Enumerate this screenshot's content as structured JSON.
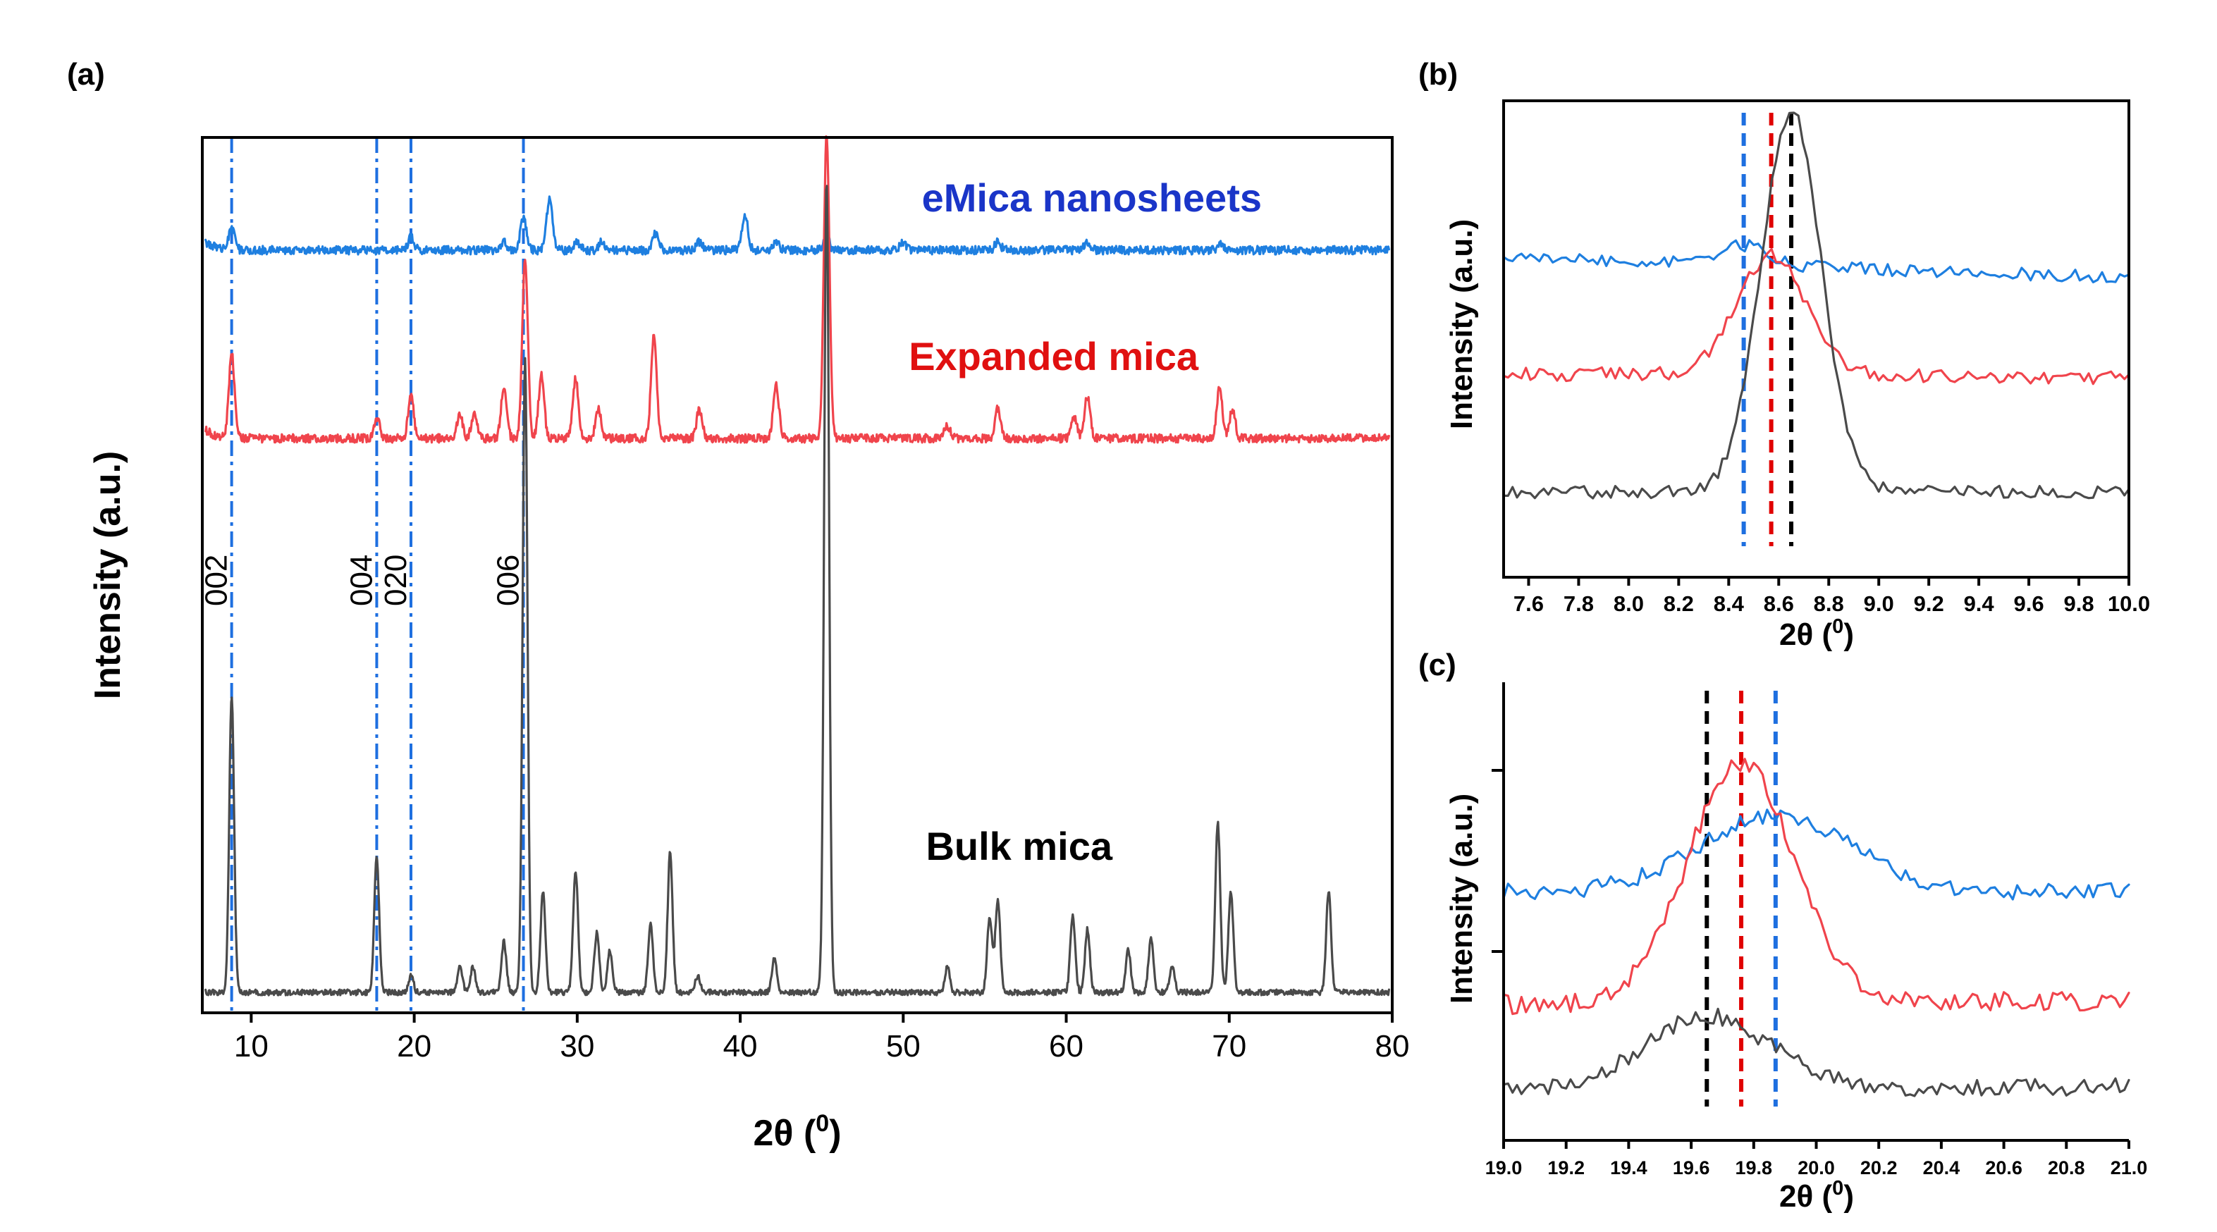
{
  "figure": {
    "panels": [
      "(a)",
      "(b)",
      "(c)"
    ],
    "colors": {
      "bulk": "#4a4a4a",
      "expanded": "#f0444c",
      "emica": "#1e7fe0",
      "ref": "#1e6fe0"
    }
  },
  "chart_data": [
    {
      "panel": "(a)",
      "type": "line",
      "title": "",
      "xlabel": "2θ (0)",
      "ylabel": "Intensity (a.u.)",
      "xlim": [
        7,
        80
      ],
      "xticks": [
        10,
        20,
        30,
        40,
        50,
        60,
        70,
        80
      ],
      "grid": false,
      "series": [
        {
          "name": "eMica nanosheets",
          "color": "#1e7fe0",
          "peaks": [
            [
              8.8,
              0.05
            ],
            [
              19.8,
              0.03
            ],
            [
              25.5,
              0.02
            ],
            [
              26.7,
              0.08
            ],
            [
              28.3,
              0.12
            ],
            [
              30.0,
              0.02
            ],
            [
              31.5,
              0.02
            ],
            [
              34.8,
              0.04
            ],
            [
              37.5,
              0.02
            ],
            [
              40.3,
              0.08
            ],
            [
              42.2,
              0.02
            ],
            [
              45.3,
              0.03
            ],
            [
              50.0,
              0.02
            ],
            [
              55.8,
              0.02
            ],
            [
              61.3,
              0.02
            ],
            [
              69.5,
              0.015
            ]
          ]
        },
        {
          "name": "Expanded mica",
          "color": "#f0444c",
          "peaks": [
            [
              8.8,
              0.2
            ],
            [
              17.7,
              0.05
            ],
            [
              19.8,
              0.1
            ],
            [
              22.8,
              0.06
            ],
            [
              23.7,
              0.06
            ],
            [
              25.5,
              0.12
            ],
            [
              26.8,
              0.42
            ],
            [
              27.8,
              0.15
            ],
            [
              29.9,
              0.14
            ],
            [
              31.3,
              0.07
            ],
            [
              34.7,
              0.24
            ],
            [
              37.5,
              0.07
            ],
            [
              42.2,
              0.13
            ],
            [
              45.3,
              0.72
            ],
            [
              52.7,
              0.03
            ],
            [
              55.8,
              0.07
            ],
            [
              60.5,
              0.05
            ],
            [
              61.3,
              0.1
            ],
            [
              69.4,
              0.12
            ],
            [
              70.2,
              0.07
            ]
          ]
        },
        {
          "name": "Bulk mica",
          "color": "#4a4a4a",
          "peaks": [
            [
              8.8,
              0.7
            ],
            [
              17.7,
              0.32
            ],
            [
              19.8,
              0.04
            ],
            [
              22.8,
              0.06
            ],
            [
              23.6,
              0.06
            ],
            [
              25.5,
              0.12
            ],
            [
              26.8,
              1.5
            ],
            [
              27.9,
              0.24
            ],
            [
              29.9,
              0.29
            ],
            [
              31.2,
              0.14
            ],
            [
              32.0,
              0.1
            ],
            [
              34.5,
              0.16
            ],
            [
              35.7,
              0.33
            ],
            [
              37.4,
              0.04
            ],
            [
              42.1,
              0.08
            ],
            [
              45.3,
              1.92
            ],
            [
              52.7,
              0.06
            ],
            [
              55.3,
              0.18
            ],
            [
              55.8,
              0.22
            ],
            [
              60.4,
              0.18
            ],
            [
              61.3,
              0.15
            ],
            [
              63.8,
              0.1
            ],
            [
              65.2,
              0.13
            ],
            [
              66.5,
              0.06
            ],
            [
              69.3,
              0.4
            ],
            [
              70.1,
              0.24
            ],
            [
              76.1,
              0.24
            ]
          ]
        }
      ],
      "reference_lines": [
        {
          "x": 8.8,
          "label": "002"
        },
        {
          "x": 17.7,
          "label": "004"
        },
        {
          "x": 19.8,
          "label": "020"
        },
        {
          "x": 26.7,
          "label": "006"
        }
      ],
      "legend": [
        "eMica nanosheets",
        "Expanded mica",
        "Bulk mica"
      ]
    },
    {
      "panel": "(b)",
      "type": "line",
      "title": "",
      "xlabel": "2θ (0)",
      "ylabel": "Intensity (a.u.)",
      "xlim": [
        7.5,
        10.0
      ],
      "xticks": [
        "7.6",
        "7.8",
        "8.0",
        "8.2",
        "8.4",
        "8.6",
        "8.8",
        "9.0",
        "9.2",
        "9.4",
        "9.6",
        "9.8",
        "10.0"
      ],
      "series": [
        {
          "name": "eMica nanosheets",
          "color": "#1e7fe0",
          "peak_x": 8.46
        },
        {
          "name": "Expanded mica",
          "color": "#f0444c",
          "peak_x": 8.57
        },
        {
          "name": "Bulk mica",
          "color": "#4a4a4a",
          "peak_x": 8.65
        }
      ],
      "dashed_markers": [
        {
          "x": 8.46,
          "color": "#1e6fe0"
        },
        {
          "x": 8.57,
          "color": "#e00000"
        },
        {
          "x": 8.65,
          "color": "#000000"
        }
      ]
    },
    {
      "panel": "(c)",
      "type": "line",
      "title": "",
      "xlabel": "2θ (0)",
      "ylabel": "Intensity (a.u.)",
      "xlim": [
        19.0,
        21.0
      ],
      "xticks": [
        "19.0",
        "19.2",
        "19.4",
        "19.6",
        "19.8",
        "20.0",
        "20.2",
        "20.4",
        "20.6",
        "20.8",
        "21.0"
      ],
      "series": [
        {
          "name": "eMica nanosheets",
          "color": "#1e7fe0",
          "peak_x": 19.87
        },
        {
          "name": "Expanded mica",
          "color": "#f0444c",
          "peak_x": 19.76
        },
        {
          "name": "Bulk mica",
          "color": "#4a4a4a",
          "peak_x": 19.65
        }
      ],
      "dashed_markers": [
        {
          "x": 19.65,
          "color": "#000000"
        },
        {
          "x": 19.76,
          "color": "#e00000"
        },
        {
          "x": 19.87,
          "color": "#1e6fe0"
        }
      ]
    }
  ]
}
